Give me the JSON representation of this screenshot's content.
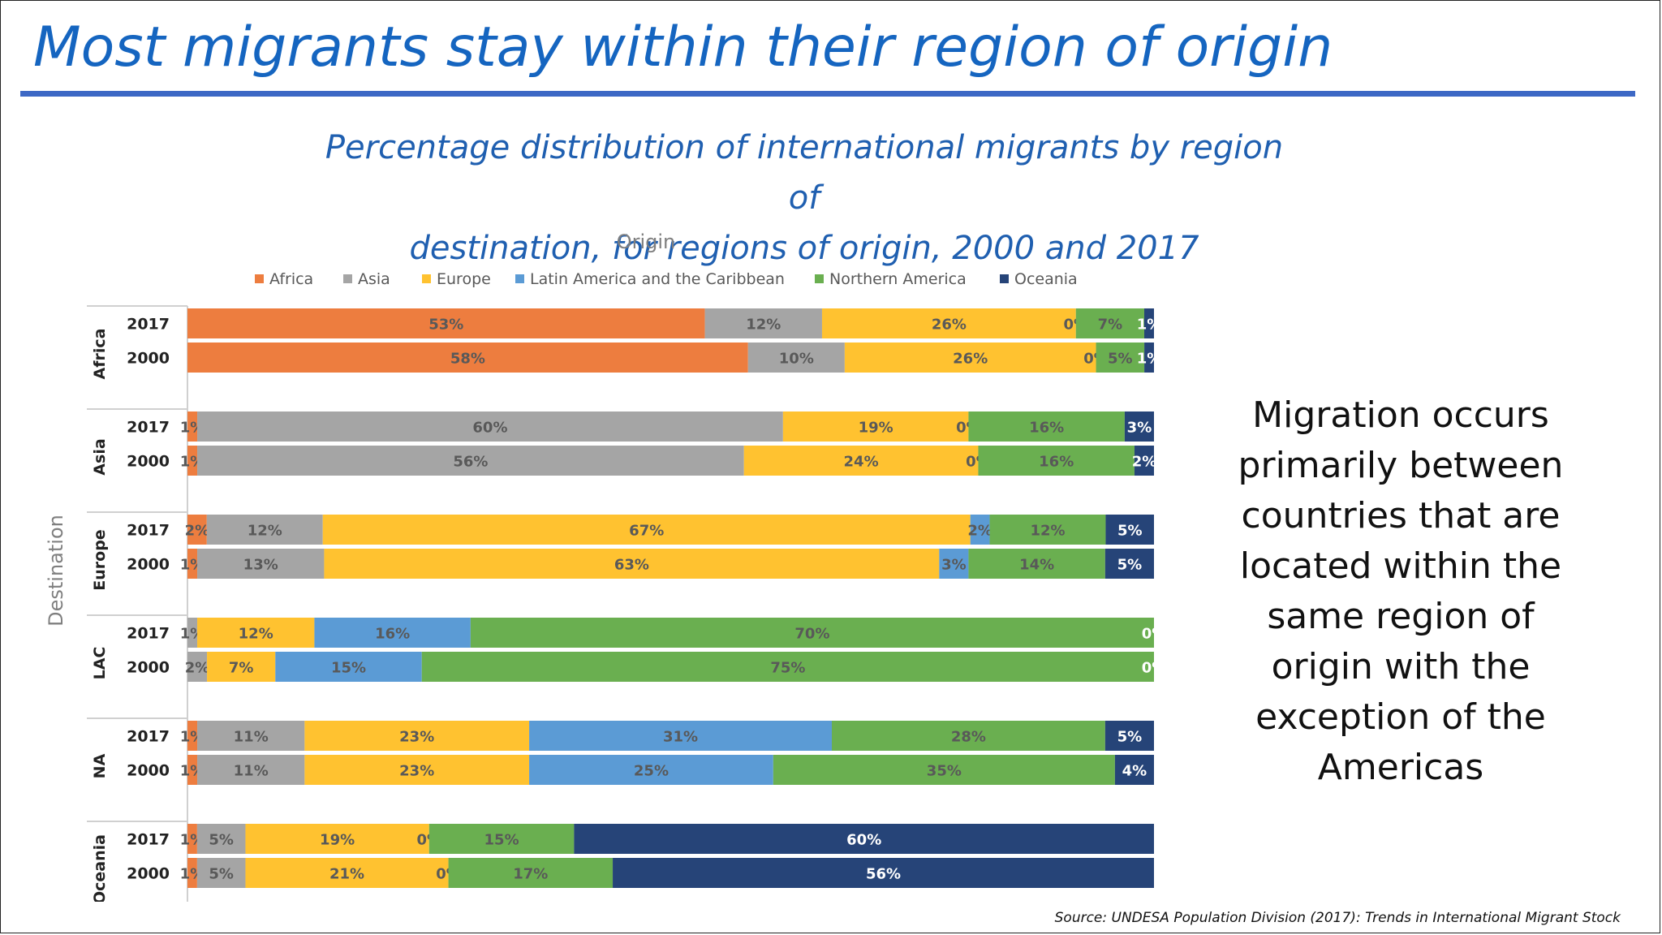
{
  "slide": {
    "title": "Most migrants stay within their region of origin",
    "subtitle_line1": "Percentage distribution of international migrants by region of",
    "subtitle_line2": "destination, for regions of origin, 2000 and 2017",
    "side_text": "Migration occurs primarily between countries that are located within the same region of origin with the exception of the Americas",
    "source": "Source: UNDESA Population Division (2017): Trends in International Migrant Stock"
  },
  "chart_data": {
    "type": "bar",
    "orientation": "horizontal",
    "stacked": true,
    "normalized": true,
    "legend_title": "Origin",
    "legend_position": "top",
    "ylabel": "Destination",
    "series": [
      {
        "name": "Africa",
        "color": "#ed7d3f"
      },
      {
        "name": "Asia",
        "color": "#a5a5a5"
      },
      {
        "name": "Europe",
        "color": "#ffc230"
      },
      {
        "name": "Latin America and the Caribbean",
        "color": "#5b9bd5"
      },
      {
        "name": "Northern America",
        "color": "#6aaf50"
      },
      {
        "name": "Oceania",
        "color": "#264478"
      }
    ],
    "groups": [
      {
        "name": "Africa",
        "rows": [
          {
            "year": "2017",
            "values": [
              53,
              12,
              26,
              0,
              7,
              1
            ],
            "labels": [
              "53%",
              "12%",
              "26%",
              "0%",
              "7%",
              "1%"
            ]
          },
          {
            "year": "2000",
            "values": [
              58,
              10,
              26,
              0,
              5,
              1
            ],
            "labels": [
              "58%",
              "10%",
              "26%",
              "0%",
              "5%",
              "1%"
            ]
          }
        ]
      },
      {
        "name": "Asia",
        "rows": [
          {
            "year": "2017",
            "values": [
              1,
              60,
              19,
              0,
              16,
              3
            ],
            "labels": [
              "1%",
              "60%",
              "19%",
              "0%",
              "16%",
              "3%"
            ]
          },
          {
            "year": "2000",
            "values": [
              1,
              56,
              24,
              0,
              16,
              2
            ],
            "labels": [
              "1%",
              "56%",
              "24%",
              "0%",
              "16%",
              "2%"
            ]
          }
        ]
      },
      {
        "name": "Europe",
        "rows": [
          {
            "year": "2017",
            "values": [
              2,
              12,
              67,
              2,
              12,
              5
            ],
            "labels": [
              "2%",
              "12%",
              "67%",
              "2%",
              "12%",
              "5%"
            ]
          },
          {
            "year": "2000",
            "values": [
              1,
              13,
              63,
              3,
              14,
              5
            ],
            "labels": [
              "1%",
              "13%",
              "63%",
              "3%",
              "14%",
              "5%"
            ]
          }
        ]
      },
      {
        "name": "LAC",
        "rows": [
          {
            "year": "2017",
            "values": [
              0,
              1,
              12,
              16,
              70,
              0
            ],
            "labels": [
              "",
              "1%",
              "12%",
              "16%",
              "70%",
              "0%"
            ]
          },
          {
            "year": "2000",
            "values": [
              0,
              2,
              7,
              15,
              75,
              0
            ],
            "labels": [
              "",
              "2%",
              "7%",
              "15%",
              "75%",
              "0%"
            ]
          }
        ]
      },
      {
        "name": "NA",
        "rows": [
          {
            "year": "2017",
            "values": [
              1,
              11,
              23,
              31,
              28,
              5
            ],
            "labels": [
              "1%",
              "11%",
              "23%",
              "31%",
              "28%",
              "5%"
            ]
          },
          {
            "year": "2000",
            "values": [
              1,
              11,
              23,
              25,
              35,
              4
            ],
            "labels": [
              "1%",
              "11%",
              "23%",
              "25%",
              "35%",
              "4%"
            ]
          }
        ]
      },
      {
        "name": "Oceania",
        "rows": [
          {
            "year": "2017",
            "values": [
              1,
              5,
              19,
              0,
              15,
              60
            ],
            "labels": [
              "1%",
              "5%",
              "19%",
              "0%",
              "15%",
              "60%"
            ]
          },
          {
            "year": "2000",
            "values": [
              1,
              5,
              21,
              0,
              17,
              56
            ],
            "labels": [
              "1%",
              "5%",
              "21%",
              "0%",
              "17%",
              "56%"
            ]
          }
        ]
      }
    ]
  }
}
